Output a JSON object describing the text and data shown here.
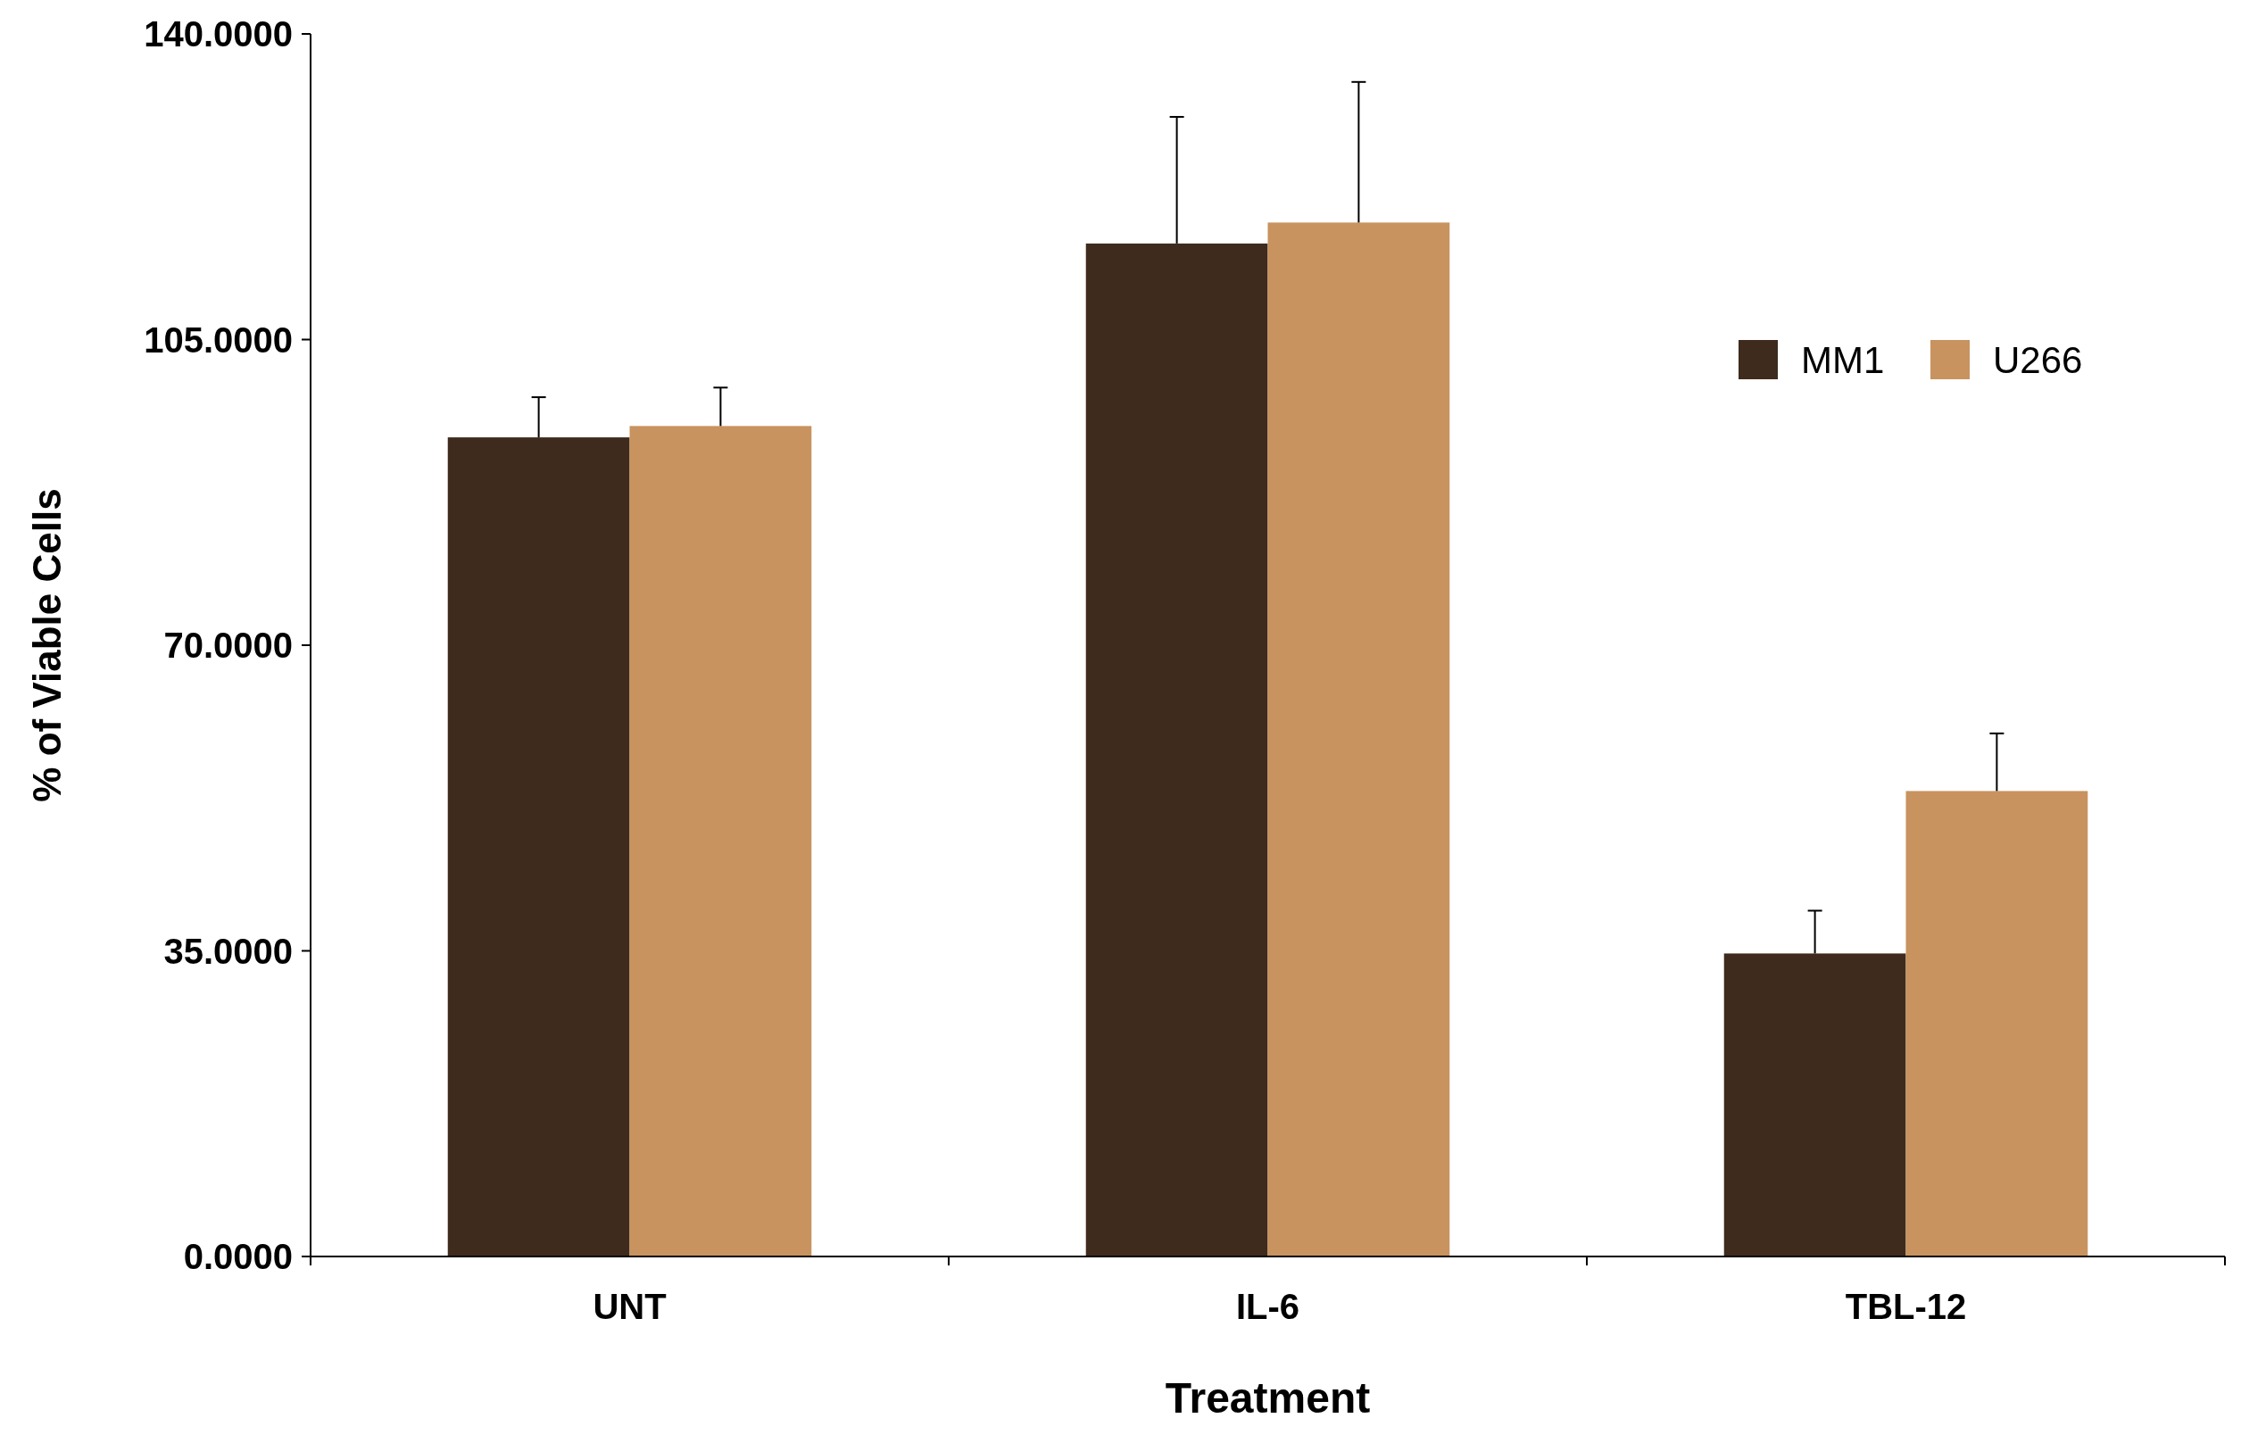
{
  "chart_data": {
    "type": "bar",
    "xlabel": "Treatment",
    "ylabel": "% of Viable Cells",
    "categories": [
      "UNT",
      "IL-6",
      "TBL-12"
    ],
    "series": [
      {
        "name": "MM1",
        "color": "#3e2b1d",
        "values": [
          93.8,
          116.0,
          34.7
        ],
        "errors": [
          [
            93.8,
            98.4
          ],
          [
            116.0,
            130.5
          ],
          [
            34.7,
            39.6
          ]
        ]
      },
      {
        "name": "U266",
        "color": "#c8935f",
        "values": [
          95.1,
          118.4,
          53.3
        ],
        "errors": [
          [
            95.1,
            99.5
          ],
          [
            118.4,
            134.5
          ],
          [
            53.3,
            59.9
          ]
        ]
      }
    ],
    "ylim": [
      0,
      140
    ],
    "yticks": [
      {
        "value": 0,
        "label": "0.0000"
      },
      {
        "value": 35,
        "label": "35.0000"
      },
      {
        "value": 70,
        "label": "70.0000"
      },
      {
        "value": 105,
        "label": "105.0000"
      },
      {
        "value": 140,
        "label": "140.0000"
      }
    ],
    "legend": "top right",
    "grid": false
  }
}
